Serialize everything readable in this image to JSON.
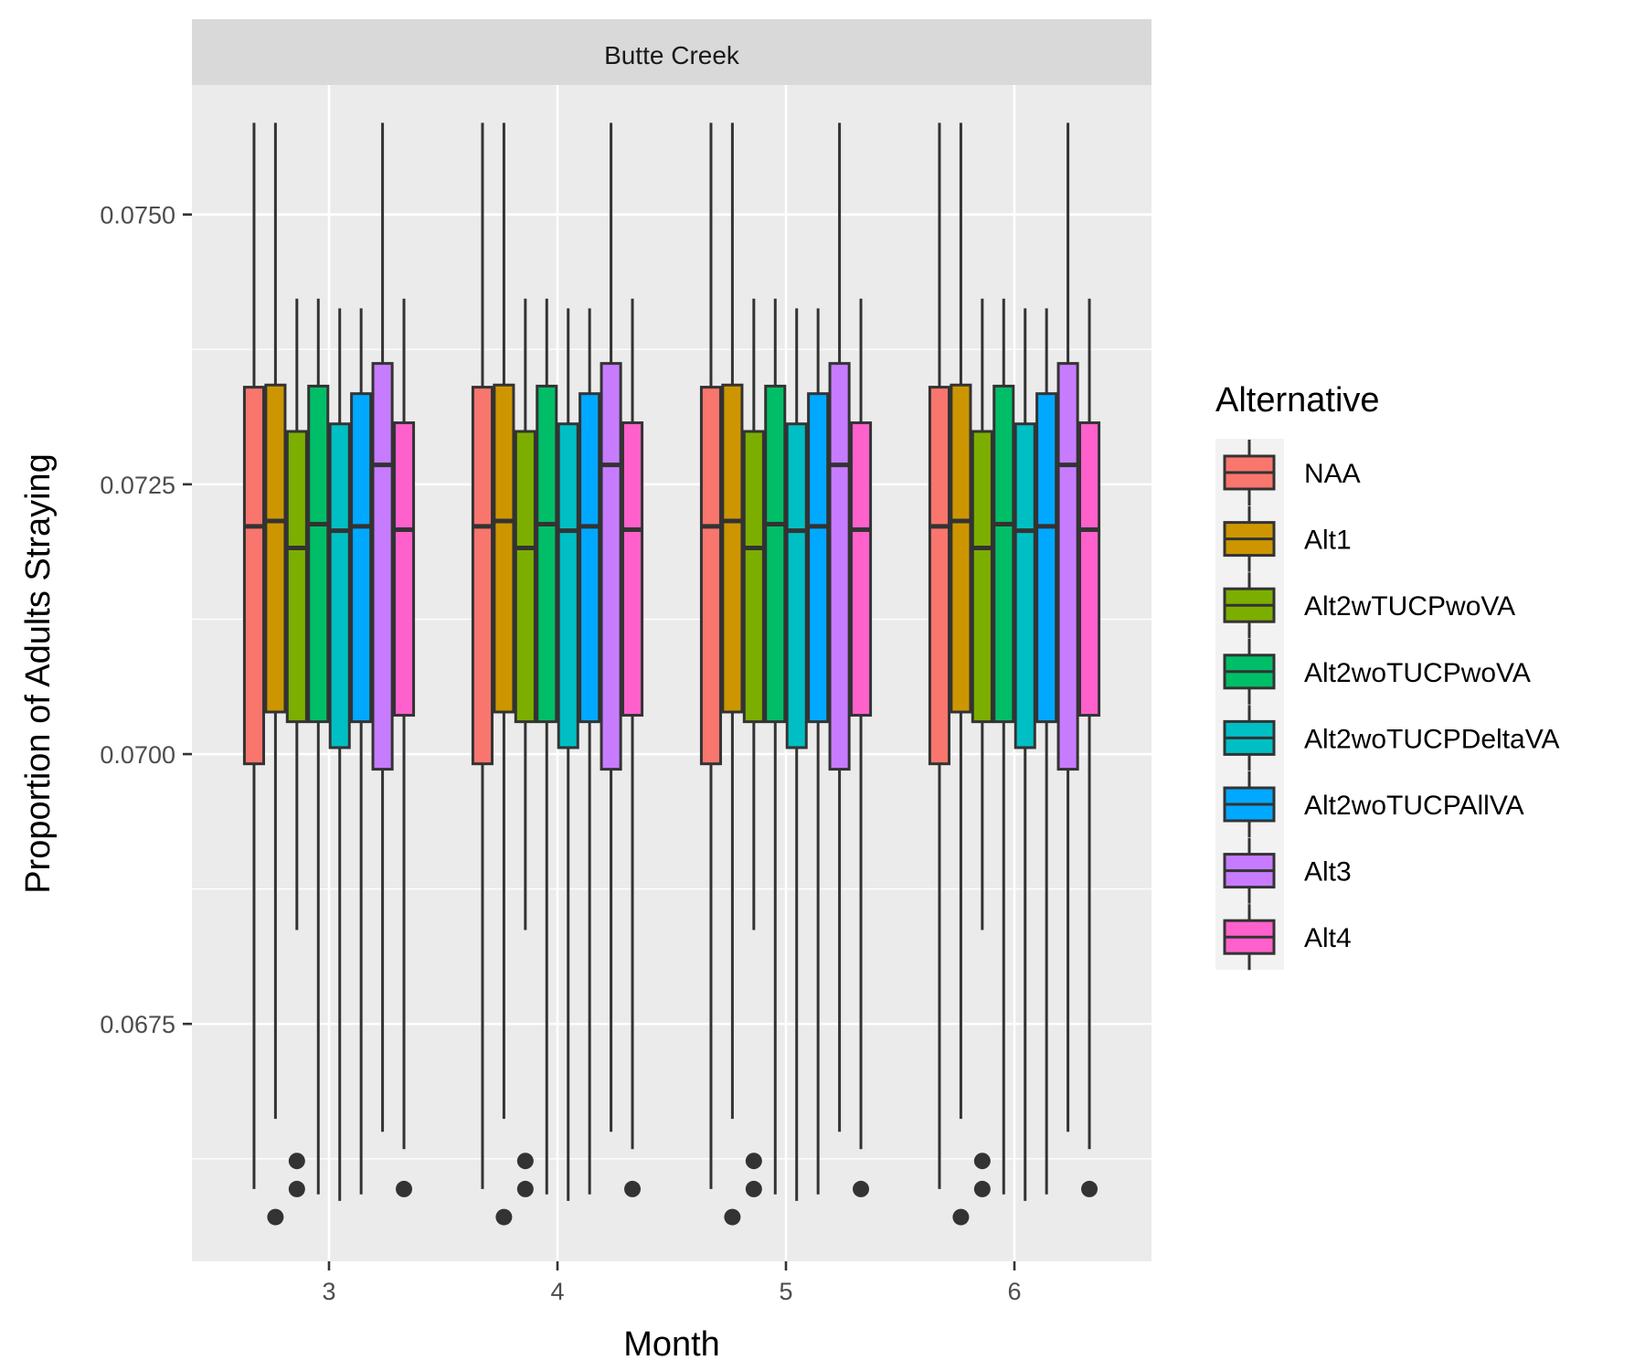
{
  "chart_data": {
    "type": "boxplot",
    "facet_label": "Butte Creek",
    "xlabel": "Month",
    "ylabel": "Proportion of Adults Straying",
    "categories": [
      "3",
      "4",
      "5",
      "6"
    ],
    "ylim": [
      0.0653,
      0.0762
    ],
    "y_ticks": [
      {
        "value": 0.0675,
        "label": "0.0675"
      },
      {
        "value": 0.07,
        "label": "0.0700"
      },
      {
        "value": 0.0725,
        "label": "0.0725"
      },
      {
        "value": 0.075,
        "label": "0.0750"
      }
    ],
    "legend": {
      "title": "Alternative",
      "position": "right"
    },
    "grid": true,
    "series": [
      {
        "name": "NAA",
        "color": "#F8766D",
        "stats": {
          "min": 0.06597,
          "q1": 0.06991,
          "median": 0.07211,
          "q3": 0.0734,
          "max": 0.07585
        },
        "outliers": []
      },
      {
        "name": "Alt1",
        "color": "#CD9600",
        "stats": {
          "min": 0.06662,
          "q1": 0.07039,
          "median": 0.07216,
          "q3": 0.07342,
          "max": 0.07585
        },
        "outliers": [
          0.06571
        ]
      },
      {
        "name": "Alt2wTUCPwoVA",
        "color": "#7CAE00",
        "stats": {
          "min": 0.06837,
          "q1": 0.0703,
          "median": 0.07191,
          "q3": 0.07299,
          "max": 0.07422
        },
        "outliers": [
          0.06623,
          0.06597
        ]
      },
      {
        "name": "Alt2woTUCPwoVA",
        "color": "#00BE67",
        "stats": {
          "min": 0.06592,
          "q1": 0.0703,
          "median": 0.07213,
          "q3": 0.07341,
          "max": 0.07422
        },
        "outliers": []
      },
      {
        "name": "Alt2woTUCPDeltaVA",
        "color": "#00BFC4",
        "stats": {
          "min": 0.06586,
          "q1": 0.07006,
          "median": 0.07207,
          "q3": 0.07306,
          "max": 0.07413
        },
        "outliers": []
      },
      {
        "name": "Alt2woTUCPAllVA",
        "color": "#00A9FF",
        "stats": {
          "min": 0.06592,
          "q1": 0.0703,
          "median": 0.07211,
          "q3": 0.07334,
          "max": 0.07413
        },
        "outliers": []
      },
      {
        "name": "Alt3",
        "color": "#C77CFF",
        "stats": {
          "min": 0.0665,
          "q1": 0.06986,
          "median": 0.07268,
          "q3": 0.07362,
          "max": 0.07585
        },
        "outliers": []
      },
      {
        "name": "Alt4",
        "color": "#FF61CC",
        "stats": {
          "min": 0.06634,
          "q1": 0.07036,
          "median": 0.07208,
          "q3": 0.07307,
          "max": 0.07422
        },
        "outliers": [
          0.06597
        ]
      }
    ]
  }
}
